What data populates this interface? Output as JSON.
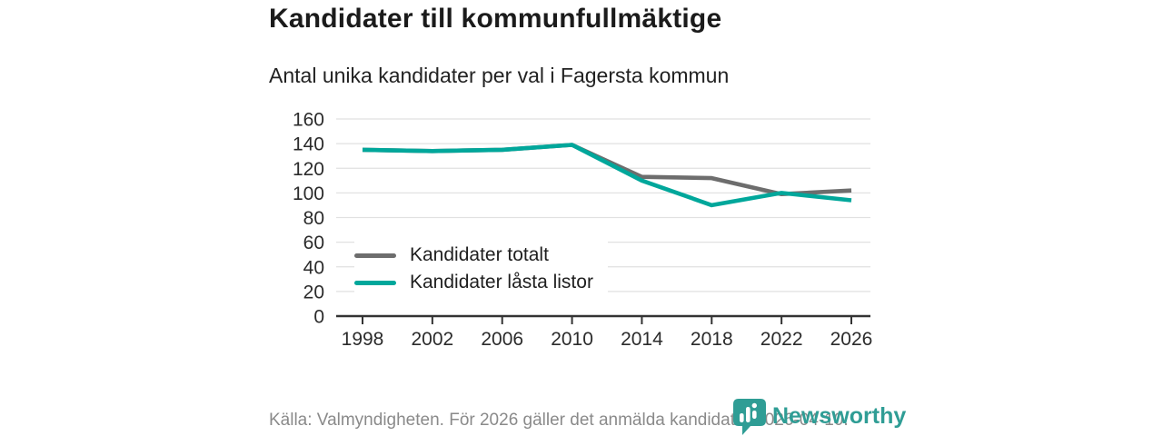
{
  "header": {
    "title": "Kandidater till kommunfullmäktige",
    "subtitle": "Antal unika kandidater per val i Fagersta kommun"
  },
  "chart_data": {
    "type": "line",
    "title": "Kandidater till kommunfullmäktige",
    "subtitle": "Antal unika kandidater per val i Fagersta kommun",
    "categories": [
      "1998",
      "2002",
      "2006",
      "2010",
      "2014",
      "2018",
      "2022",
      "2026"
    ],
    "series": [
      {
        "name": "Kandidater totalt",
        "color": "#6d6d6d",
        "values": [
          135,
          134,
          135,
          139,
          113,
          112,
          99,
          102
        ]
      },
      {
        "name": "Kandidater låsta listor",
        "color": "#00a79b",
        "values": [
          135,
          134,
          135,
          139,
          110,
          90,
          100,
          94
        ]
      }
    ],
    "xlabel": "",
    "ylabel": "",
    "ylim": [
      0,
      160
    ],
    "yticks": [
      0,
      20,
      40,
      60,
      80,
      100,
      120,
      140,
      160
    ],
    "grid": "horizontal",
    "legend_position": "inside-bottom-left"
  },
  "footer": {
    "source": "Källa: Valmyndigheten. För 2026 gäller det anmälda kandidater 2026-04-10.",
    "brand": "Newsworthy"
  },
  "colors": {
    "accent": "#00a79b",
    "secondary": "#6d6d6d",
    "grid": "#e1e1e1",
    "axis": "#333333",
    "tick_text": "#2b2b2b",
    "title_text": "#1b1b1b",
    "footer_text": "#8a8a8a",
    "brand": "#2f9d95"
  }
}
